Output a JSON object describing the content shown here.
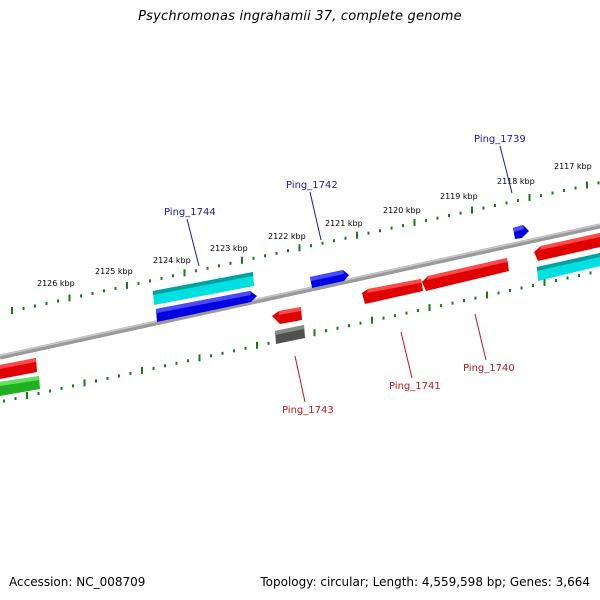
{
  "title": "Psychromonas ingrahamii 37, complete genome",
  "footer": {
    "accession": "Accession: NC_008709",
    "topology": "Topology: circular; Length: 4,559,598 bp; Genes: 3,664"
  },
  "scale": {
    "unit": "kbp",
    "labels": [
      "2126 kbp",
      "2125 kbp",
      "2124 kbp",
      "2123 kbp",
      "2122 kbp",
      "2121 kbp",
      "2120 kbp",
      "2119 kbp",
      "2118 kbp",
      "2117 kbp"
    ]
  },
  "genes": [
    {
      "label": "Ping_1744",
      "strand": "+",
      "color": "#1a1aa8"
    },
    {
      "label": "Ping_1742",
      "strand": "+",
      "color": "#1a1aa8"
    },
    {
      "label": "Ping_1739",
      "strand": "+",
      "color": "#1a1aa8"
    },
    {
      "label": "Ping_1743",
      "strand": "-",
      "color": "#c0161c"
    },
    {
      "label": "Ping_1741",
      "strand": "-",
      "color": "#c0161c"
    },
    {
      "label": "Ping_1740",
      "strand": "-",
      "color": "#c0161c"
    }
  ],
  "colors": {
    "plus_cds": "#0a0ad8",
    "minus_cds": "#e81010",
    "rna": "#00c8c8",
    "other": "#20a020",
    "pseudo": "#555555",
    "backbone": "#808080",
    "tick": "#1a7a1a"
  }
}
